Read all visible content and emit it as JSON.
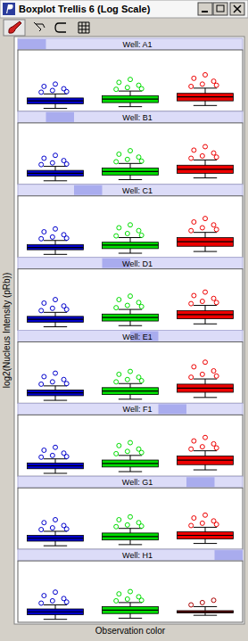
{
  "chart_data": {
    "type": "boxplot",
    "title": "Boxplot Trellis 6 (Log Scale)",
    "x_label": "Observation color",
    "y_label": "log2(Nucleus Intensity (pRb))",
    "categories": [
      null,
      null,
      null
    ],
    "ylim": [
      0,
      100
    ],
    "tick_labels": false,
    "panels": [
      {
        "label": "Well: A1",
        "series": [
          {
            "color": "#0000cc",
            "low": 2,
            "q1": 10,
            "median": 15,
            "q3": 20,
            "high": 27,
            "outliers": [
              30,
              33,
              36,
              40,
              44,
              31
            ]
          },
          {
            "color": "#00dd00",
            "low": 5,
            "q1": 12,
            "median": 18,
            "q3": 24,
            "high": 32,
            "outliers": [
              35,
              38,
              42,
              47,
              52,
              36
            ]
          },
          {
            "color": "#ee0000",
            "low": 7,
            "q1": 15,
            "median": 22,
            "q3": 28,
            "high": 37,
            "outliers": [
              40,
              44,
              49,
              54,
              60,
              42
            ]
          }
        ]
      },
      {
        "label": "Well: B1",
        "series": [
          {
            "color": "#0000cc",
            "low": 3,
            "q1": 11,
            "median": 16,
            "q3": 21,
            "high": 28,
            "outliers": [
              31,
              34,
              38,
              42,
              47,
              32
            ]
          },
          {
            "color": "#00dd00",
            "low": 5,
            "q1": 13,
            "median": 19,
            "q3": 25,
            "high": 33,
            "outliers": [
              36,
              40,
              44,
              49,
              55,
              37
            ]
          },
          {
            "color": "#ee0000",
            "low": 8,
            "q1": 16,
            "median": 23,
            "q3": 30,
            "high": 39,
            "outliers": [
              42,
              46,
              51,
              56,
              62,
              44
            ]
          }
        ]
      },
      {
        "label": "Well: C1",
        "series": [
          {
            "color": "#0000cc",
            "low": 2,
            "q1": 10,
            "median": 14,
            "q3": 19,
            "high": 26,
            "outliers": [
              29,
              32,
              36,
              41,
              46,
              30
            ]
          },
          {
            "color": "#00dd00",
            "low": 4,
            "q1": 12,
            "median": 18,
            "q3": 23,
            "high": 31,
            "outliers": [
              34,
              38,
              43,
              48,
              53,
              35
            ]
          },
          {
            "color": "#ee0000",
            "low": 7,
            "q1": 16,
            "median": 24,
            "q3": 31,
            "high": 40,
            "outliers": [
              43,
              48,
              53,
              58,
              64,
              45
            ]
          }
        ]
      },
      {
        "label": "Well: D1",
        "series": [
          {
            "color": "#0000cc",
            "low": 3,
            "q1": 11,
            "median": 16,
            "q3": 21,
            "high": 28,
            "outliers": [
              31,
              35,
              39,
              44,
              50,
              33
            ]
          },
          {
            "color": "#00dd00",
            "low": 5,
            "q1": 13,
            "median": 19,
            "q3": 25,
            "high": 33,
            "outliers": [
              36,
              40,
              45,
              50,
              56,
              38
            ]
          },
          {
            "color": "#ee0000",
            "low": 8,
            "q1": 17,
            "median": 24,
            "q3": 31,
            "high": 40,
            "outliers": [
              43,
              47,
              52,
              57,
              63,
              45
            ]
          }
        ]
      },
      {
        "label": "Well: E1",
        "series": [
          {
            "color": "#0000cc",
            "low": 2,
            "q1": 10,
            "median": 15,
            "q3": 20,
            "high": 27,
            "outliers": [
              30,
              34,
              38,
              43,
              49,
              31
            ]
          },
          {
            "color": "#00dd00",
            "low": 4,
            "q1": 12,
            "median": 18,
            "q3": 24,
            "high": 31,
            "outliers": [
              34,
              38,
              42,
              47,
              52,
              36
            ]
          },
          {
            "color": "#ee0000",
            "low": 7,
            "q1": 16,
            "median": 23,
            "q3": 30,
            "high": 39,
            "outliers": [
              42,
              47,
              53,
              60,
              68,
              44
            ]
          }
        ]
      },
      {
        "label": "Well: F1",
        "series": [
          {
            "color": "#0000cc",
            "low": 2,
            "q1": 10,
            "median": 15,
            "q3": 20,
            "high": 27,
            "outliers": [
              30,
              33,
              37,
              42,
              47,
              31
            ]
          },
          {
            "color": "#00dd00",
            "low": 5,
            "q1": 13,
            "median": 19,
            "q3": 25,
            "high": 33,
            "outliers": [
              36,
              40,
              44,
              50,
              55,
              38
            ]
          },
          {
            "color": "#ee0000",
            "low": 8,
            "q1": 17,
            "median": 25,
            "q3": 32,
            "high": 41,
            "outliers": [
              44,
              48,
              53,
              58,
              64,
              46
            ]
          }
        ]
      },
      {
        "label": "Well: G1",
        "series": [
          {
            "color": "#0000cc",
            "low": 3,
            "q1": 11,
            "median": 16,
            "q3": 21,
            "high": 28,
            "outliers": [
              31,
              34,
              38,
              43,
              48,
              32
            ]
          },
          {
            "color": "#00dd00",
            "low": 5,
            "q1": 13,
            "median": 19,
            "q3": 25,
            "high": 33,
            "outliers": [
              36,
              39,
              43,
              48,
              53,
              37
            ]
          },
          {
            "color": "#ee0000",
            "low": 7,
            "q1": 15,
            "median": 21,
            "q3": 27,
            "high": 35,
            "outliers": [
              38,
              42,
              46,
              51,
              56,
              40
            ]
          }
        ]
      },
      {
        "label": "Well: H1",
        "series": [
          {
            "color": "#0000cc",
            "low": 2,
            "q1": 10,
            "median": 15,
            "q3": 20,
            "high": 27,
            "outliers": [
              30,
              34,
              38,
              43,
              49,
              32
            ]
          },
          {
            "color": "#00dd00",
            "low": 4,
            "q1": 12,
            "median": 18,
            "q3": 24,
            "high": 31,
            "outliers": [
              34,
              37,
              41,
              46,
              50,
              35
            ]
          },
          {
            "color": "#aa0000",
            "low": 9,
            "q1": 13,
            "median": 15,
            "q3": 17,
            "high": 24,
            "outliers": [
              27,
              31,
              35
            ]
          }
        ]
      }
    ]
  }
}
